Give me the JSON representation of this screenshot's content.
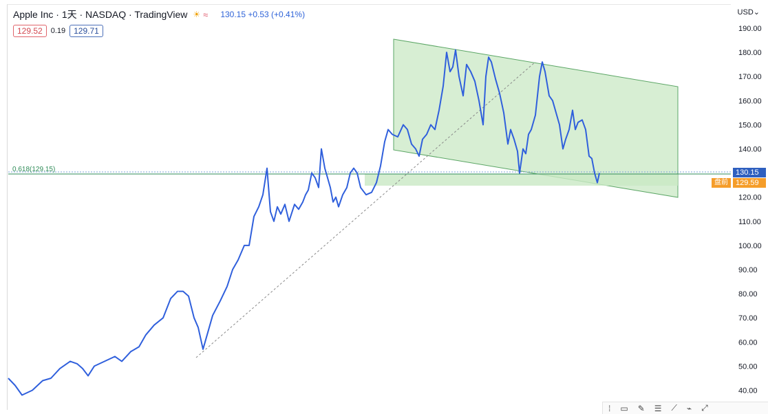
{
  "header": {
    "title": "Apple Inc · 1天 · NASDAQ · TradingView",
    "status_icon": "☀",
    "wave_icon": "≈",
    "quote": "130.15 +0.53 (+0.41%)"
  },
  "bid_ask": {
    "bid": "129.52",
    "spread": "0.19",
    "ask": "129.71"
  },
  "currency": "USD",
  "badges": {
    "last_price": "130.15",
    "pre_label": "盘前",
    "pre_price": "129.59"
  },
  "fib_label": "0.618(129.15)",
  "colors": {
    "line": "#2f5fdc",
    "channel_fill": "#c9e8c4",
    "channel_stroke": "#5aa564",
    "fib": "#2e8b57"
  },
  "toolbar_icons": [
    "dots-icon",
    "rectangle-icon",
    "pen-icon",
    "lines-icon",
    "path-icon",
    "brush-icon",
    "arrows-icon"
  ],
  "chart_data": {
    "type": "line",
    "ylim": [
      35,
      192
    ],
    "yticks": [
      "40.00",
      "50.00",
      "60.00",
      "70.00",
      "80.00",
      "90.00",
      "100.00",
      "110.00",
      "120.00",
      "130.00",
      "140.00",
      "150.00",
      "160.00",
      "170.00",
      "180.00",
      "190.00"
    ],
    "series": [
      {
        "values": [
          [
            0,
            45
          ],
          [
            10,
            42
          ],
          [
            20,
            38
          ],
          [
            35,
            40
          ],
          [
            50,
            44
          ],
          [
            62,
            45
          ],
          [
            75,
            49
          ],
          [
            90,
            52
          ],
          [
            100,
            51
          ],
          [
            108,
            49
          ],
          [
            116,
            46
          ],
          [
            125,
            50
          ],
          [
            140,
            52
          ],
          [
            155,
            54
          ],
          [
            165,
            52
          ],
          [
            178,
            56
          ],
          [
            190,
            58
          ],
          [
            200,
            63
          ],
          [
            212,
            67
          ],
          [
            225,
            70
          ],
          [
            236,
            78
          ],
          [
            246,
            81
          ],
          [
            254,
            81
          ],
          [
            262,
            79
          ],
          [
            270,
            70
          ],
          [
            276,
            66
          ],
          [
            283,
            57
          ],
          [
            290,
            64
          ],
          [
            297,
            71
          ],
          [
            308,
            77
          ],
          [
            318,
            83
          ],
          [
            326,
            90
          ],
          [
            334,
            94
          ],
          [
            343,
            100
          ],
          [
            350,
            100
          ],
          [
            357,
            112
          ],
          [
            364,
            116
          ],
          [
            370,
            121
          ],
          [
            376,
            132
          ],
          [
            381,
            114
          ],
          [
            386,
            110
          ],
          [
            391,
            116
          ],
          [
            396,
            113
          ],
          [
            402,
            117
          ],
          [
            408,
            110
          ],
          [
            416,
            117
          ],
          [
            422,
            115
          ],
          [
            428,
            118
          ],
          [
            432,
            121
          ],
          [
            436,
            123
          ],
          [
            441,
            130
          ],
          [
            446,
            128
          ],
          [
            451,
            124
          ],
          [
            455,
            140
          ],
          [
            460,
            132
          ],
          [
            464,
            128
          ],
          [
            468,
            124
          ],
          [
            472,
            118
          ],
          [
            476,
            120
          ],
          [
            480,
            116
          ],
          [
            486,
            121
          ],
          [
            492,
            124
          ],
          [
            497,
            130
          ],
          [
            502,
            132
          ],
          [
            507,
            130
          ],
          [
            512,
            124
          ],
          [
            520,
            121
          ],
          [
            528,
            122
          ],
          [
            535,
            126
          ],
          [
            541,
            133
          ],
          [
            547,
            143
          ],
          [
            552,
            148
          ],
          [
            558,
            146
          ],
          [
            566,
            145
          ],
          [
            574,
            150
          ],
          [
            580,
            148
          ],
          [
            586,
            142
          ],
          [
            592,
            140
          ],
          [
            597,
            137
          ],
          [
            602,
            144
          ],
          [
            608,
            146
          ],
          [
            614,
            150
          ],
          [
            620,
            148
          ],
          [
            626,
            156
          ],
          [
            632,
            166
          ],
          [
            637,
            180
          ],
          [
            642,
            172
          ],
          [
            646,
            174
          ],
          [
            650,
            181
          ],
          [
            655,
            170
          ],
          [
            661,
            162
          ],
          [
            666,
            175
          ],
          [
            672,
            172
          ],
          [
            678,
            168
          ],
          [
            684,
            160
          ],
          [
            690,
            150
          ],
          [
            694,
            170
          ],
          [
            698,
            178
          ],
          [
            702,
            176
          ],
          [
            708,
            169
          ],
          [
            714,
            163
          ],
          [
            720,
            155
          ],
          [
            726,
            142
          ],
          [
            730,
            148
          ],
          [
            735,
            144
          ],
          [
            740,
            139
          ],
          [
            743,
            130
          ],
          [
            748,
            140
          ],
          [
            752,
            138
          ],
          [
            756,
            146
          ],
          [
            760,
            148
          ],
          [
            766,
            154
          ],
          [
            772,
            170
          ],
          [
            776,
            176
          ],
          [
            780,
            172
          ],
          [
            786,
            162
          ],
          [
            791,
            160
          ],
          [
            796,
            155
          ],
          [
            801,
            150
          ],
          [
            806,
            140
          ],
          [
            810,
            144
          ],
          [
            815,
            148
          ],
          [
            820,
            156
          ],
          [
            824,
            148
          ],
          [
            828,
            151
          ],
          [
            834,
            152
          ],
          [
            839,
            148
          ],
          [
            844,
            137
          ],
          [
            848,
            136
          ],
          [
            852,
            130
          ],
          [
            856,
            126
          ],
          [
            859,
            130
          ]
        ]
      }
    ]
  }
}
